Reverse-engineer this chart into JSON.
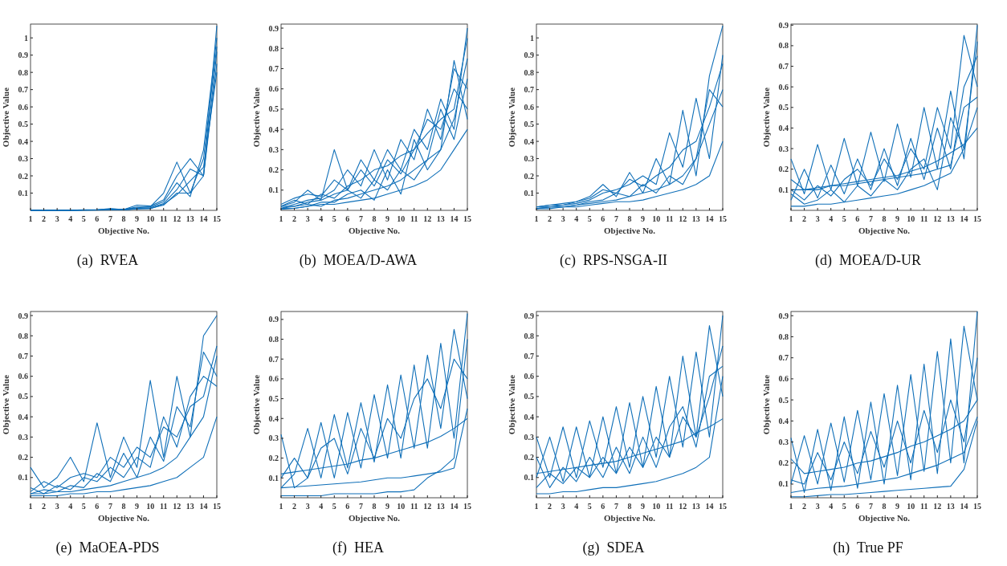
{
  "chart_data": [
    {
      "type": "line",
      "title": "(a)  RVEA",
      "xlabel": "Objective No.",
      "ylabel": "Objective Value",
      "x": [
        1,
        2,
        3,
        4,
        5,
        6,
        7,
        8,
        9,
        10,
        11,
        12,
        13,
        14,
        15
      ],
      "xlim": [
        1,
        15
      ],
      "xticks": [
        1,
        2,
        3,
        4,
        5,
        6,
        7,
        8,
        9,
        10,
        11,
        12,
        13,
        14,
        15
      ],
      "ylim": [
        0,
        1.08
      ],
      "yticks": [
        0.1,
        0.2,
        0.3,
        0.4,
        0.5,
        0.6,
        0.7,
        0.8,
        0.9,
        1
      ],
      "series": [
        {
          "color": "#0f6fb8",
          "values": [
            0,
            0,
            0,
            0,
            0.002,
            0.003,
            0.005,
            0.004,
            0.02,
            0.02,
            0.1,
            0.28,
            0.1,
            0.2,
            1.07
          ]
        },
        {
          "color": "#0f6fb8",
          "values": [
            0,
            0,
            0,
            0,
            0.002,
            0.003,
            0.01,
            0.005,
            0.03,
            0.025,
            0.06,
            0.2,
            0.3,
            0.2,
            0.92
          ]
        },
        {
          "color": "#0f6fb8",
          "values": [
            0,
            0,
            0,
            0.001,
            0.003,
            0.002,
            0.008,
            0.006,
            0.015,
            0.02,
            0.05,
            0.16,
            0.08,
            0.35,
            1.0
          ]
        },
        {
          "color": "#0f6fb8",
          "values": [
            0,
            0,
            0,
            0,
            0.001,
            0.002,
            0.004,
            0.003,
            0.01,
            0.015,
            0.04,
            0.12,
            0.24,
            0.2,
            0.85
          ]
        },
        {
          "color": "#0f6fb8",
          "values": [
            0,
            0,
            0,
            0,
            0.001,
            0.001,
            0.003,
            0.003,
            0.008,
            0.012,
            0.03,
            0.1,
            0.1,
            0.3,
            0.95
          ]
        },
        {
          "color": "#0f6fb8",
          "values": [
            0,
            0,
            0,
            0,
            0.001,
            0.002,
            0.003,
            0.004,
            0.01,
            0.01,
            0.035,
            0.09,
            0.17,
            0.25,
            0.8
          ]
        }
      ]
    },
    {
      "type": "line",
      "title": "(b)  MOEA/D-AWA",
      "xlabel": "Objective No.",
      "ylabel": "Objective Value",
      "x": [
        1,
        2,
        3,
        4,
        5,
        6,
        7,
        8,
        9,
        10,
        11,
        12,
        13,
        14,
        15
      ],
      "xlim": [
        1,
        15
      ],
      "xticks": [
        1,
        2,
        3,
        4,
        5,
        6,
        7,
        8,
        9,
        10,
        11,
        12,
        13,
        14,
        15
      ],
      "ylim": [
        0,
        0.92
      ],
      "yticks": [
        0.1,
        0.2,
        0.3,
        0.4,
        0.5,
        0.6,
        0.7,
        0.8,
        0.9
      ],
      "series": [
        {
          "color": "#0f6fb8",
          "values": [
            0.02,
            0.04,
            0.1,
            0.05,
            0.3,
            0.1,
            0.25,
            0.15,
            0.3,
            0.2,
            0.4,
            0.3,
            0.55,
            0.4,
            0.9
          ]
        },
        {
          "color": "#0f6fb8",
          "values": [
            0.01,
            0.03,
            0.05,
            0.06,
            0.1,
            0.2,
            0.12,
            0.3,
            0.15,
            0.35,
            0.25,
            0.5,
            0.35,
            0.7,
            0.6
          ]
        },
        {
          "color": "#0f6fb8",
          "values": [
            0.01,
            0.02,
            0.03,
            0.02,
            0.05,
            0.06,
            0.08,
            0.1,
            0.12,
            0.15,
            0.2,
            0.25,
            0.3,
            0.45,
            0.75
          ]
        },
        {
          "color": "#0f6fb8",
          "values": [
            0.005,
            0.01,
            0.02,
            0.03,
            0.03,
            0.04,
            0.05,
            0.06,
            0.08,
            0.1,
            0.12,
            0.15,
            0.2,
            0.3,
            0.4
          ]
        },
        {
          "color": "#0f6fb8",
          "values": [
            0.03,
            0.06,
            0.08,
            0.07,
            0.15,
            0.1,
            0.2,
            0.12,
            0.25,
            0.18,
            0.3,
            0.45,
            0.4,
            0.6,
            0.5
          ]
        },
        {
          "color": "#0f6fb8",
          "values": [
            0.02,
            0.02,
            0.04,
            0.05,
            0.08,
            0.1,
            0.06,
            0.15,
            0.1,
            0.2,
            0.15,
            0.25,
            0.5,
            0.35,
            0.65
          ]
        },
        {
          "color": "#0f6fb8",
          "values": [
            0.01,
            0.01,
            0.02,
            0.04,
            0.04,
            0.08,
            0.1,
            0.05,
            0.2,
            0.08,
            0.35,
            0.2,
            0.3,
            0.74,
            0.45
          ]
        },
        {
          "color": "#0f6fb8",
          "values": [
            0.02,
            0.05,
            0.03,
            0.08,
            0.06,
            0.12,
            0.15,
            0.2,
            0.22,
            0.27,
            0.3,
            0.38,
            0.45,
            0.5,
            0.85
          ]
        }
      ]
    },
    {
      "type": "line",
      "title": "(c)  RPS-NSGA-II",
      "xlabel": "Objective No.",
      "ylabel": "Objective Value",
      "x": [
        1,
        2,
        3,
        4,
        5,
        6,
        7,
        8,
        9,
        10,
        11,
        12,
        13,
        14,
        15
      ],
      "xlim": [
        1,
        15
      ],
      "xticks": [
        1,
        2,
        3,
        4,
        5,
        6,
        7,
        8,
        9,
        10,
        11,
        12,
        13,
        14,
        15
      ],
      "ylim": [
        0,
        1.08
      ],
      "yticks": [
        0.1,
        0.2,
        0.3,
        0.4,
        0.5,
        0.6,
        0.7,
        0.8,
        0.9,
        1
      ],
      "series": [
        {
          "color": "#0f6fb8",
          "values": [
            0.02,
            0.03,
            0.03,
            0.05,
            0.08,
            0.15,
            0.08,
            0.22,
            0.1,
            0.3,
            0.15,
            0.58,
            0.2,
            0.78,
            1.07
          ]
        },
        {
          "color": "#0f6fb8",
          "values": [
            0.02,
            0.02,
            0.03,
            0.04,
            0.06,
            0.1,
            0.12,
            0.15,
            0.2,
            0.15,
            0.45,
            0.25,
            0.65,
            0.3,
            0.9
          ]
        },
        {
          "color": "#0f6fb8",
          "values": [
            0.01,
            0.02,
            0.02,
            0.03,
            0.04,
            0.05,
            0.06,
            0.08,
            0.1,
            0.12,
            0.15,
            0.2,
            0.3,
            0.5,
            0.7
          ]
        },
        {
          "color": "#0f6fb8",
          "values": [
            0.01,
            0.01,
            0.02,
            0.02,
            0.03,
            0.04,
            0.05,
            0.05,
            0.06,
            0.08,
            0.1,
            0.12,
            0.15,
            0.2,
            0.4
          ]
        },
        {
          "color": "#0f6fb8",
          "values": [
            0.02,
            0.03,
            0.04,
            0.05,
            0.07,
            0.12,
            0.1,
            0.18,
            0.14,
            0.2,
            0.25,
            0.35,
            0.4,
            0.6,
            0.85
          ]
        },
        {
          "color": "#0f6fb8",
          "values": [
            0.01,
            0.02,
            0.02,
            0.03,
            0.05,
            0.06,
            0.1,
            0.08,
            0.15,
            0.1,
            0.2,
            0.15,
            0.3,
            0.7,
            0.6
          ]
        }
      ]
    },
    {
      "type": "line",
      "title": "(d)  MOEA/D-UR",
      "xlabel": "Objective No.",
      "ylabel": "Objective Value",
      "x": [
        1,
        2,
        3,
        4,
        5,
        6,
        7,
        8,
        9,
        10,
        11,
        12,
        13,
        14,
        15
      ],
      "xlim": [
        1,
        15
      ],
      "xticks": [
        1,
        2,
        3,
        4,
        5,
        6,
        7,
        8,
        9,
        10,
        11,
        12,
        13,
        14,
        15
      ],
      "ylim": [
        0,
        0.905
      ],
      "yticks": [
        0.1,
        0.2,
        0.3,
        0.4,
        0.5,
        0.6,
        0.7,
        0.8,
        0.9
      ],
      "series": [
        {
          "color": "#0f6fb8",
          "values": [
            0.25,
            0.08,
            0.32,
            0.1,
            0.35,
            0.12,
            0.38,
            0.14,
            0.42,
            0.16,
            0.5,
            0.2,
            0.58,
            0.25,
            0.9
          ]
        },
        {
          "color": "#0f6fb8",
          "values": [
            0.1,
            0.05,
            0.12,
            0.07,
            0.15,
            0.2,
            0.12,
            0.25,
            0.15,
            0.3,
            0.2,
            0.5,
            0.3,
            0.85,
            0.6
          ]
        },
        {
          "color": "#0f6fb8",
          "values": [
            0.1,
            0.1,
            0.11,
            0.12,
            0.13,
            0.14,
            0.15,
            0.16,
            0.17,
            0.19,
            0.21,
            0.24,
            0.28,
            0.32,
            0.4
          ]
        },
        {
          "color": "#0f6fb8",
          "values": [
            0.02,
            0.02,
            0.03,
            0.03,
            0.04,
            0.05,
            0.06,
            0.07,
            0.08,
            0.1,
            0.12,
            0.15,
            0.18,
            0.3,
            0.5
          ]
        },
        {
          "color": "#0f6fb8",
          "values": [
            0.05,
            0.2,
            0.06,
            0.22,
            0.08,
            0.25,
            0.1,
            0.3,
            0.12,
            0.35,
            0.15,
            0.4,
            0.2,
            0.6,
            0.75
          ]
        },
        {
          "color": "#0f6fb8",
          "values": [
            0.08,
            0.03,
            0.05,
            0.1,
            0.04,
            0.12,
            0.07,
            0.15,
            0.1,
            0.2,
            0.25,
            0.1,
            0.45,
            0.3,
            0.82
          ]
        },
        {
          "color": "#0f6fb8",
          "values": [
            0.15,
            0.1,
            0.1,
            0.12,
            0.12,
            0.13,
            0.14,
            0.15,
            0.16,
            0.17,
            0.18,
            0.2,
            0.22,
            0.5,
            0.55
          ]
        }
      ]
    },
    {
      "type": "line",
      "title": "(e)  MaOEA-PDS",
      "xlabel": "Objective No.",
      "ylabel": "Objective Value",
      "x": [
        1,
        2,
        3,
        4,
        5,
        6,
        7,
        8,
        9,
        10,
        11,
        12,
        13,
        14,
        15
      ],
      "xlim": [
        1,
        15
      ],
      "xticks": [
        1,
        2,
        3,
        4,
        5,
        6,
        7,
        8,
        9,
        10,
        11,
        12,
        13,
        14,
        15
      ],
      "ylim": [
        0,
        0.92
      ],
      "yticks": [
        0.1,
        0.2,
        0.3,
        0.4,
        0.5,
        0.6,
        0.7,
        0.8,
        0.9
      ],
      "series": [
        {
          "color": "#0f6fb8",
          "values": [
            0.15,
            0.05,
            0.1,
            0.2,
            0.08,
            0.37,
            0.1,
            0.3,
            0.15,
            0.58,
            0.2,
            0.6,
            0.3,
            0.8,
            0.9
          ]
        },
        {
          "color": "#0f6fb8",
          "values": [
            0.05,
            0.02,
            0.06,
            0.04,
            0.1,
            0.08,
            0.15,
            0.1,
            0.2,
            0.15,
            0.4,
            0.25,
            0.5,
            0.6,
            0.55
          ]
        },
        {
          "color": "#0f6fb8",
          "values": [
            0.02,
            0.02,
            0.03,
            0.03,
            0.04,
            0.05,
            0.06,
            0.08,
            0.1,
            0.12,
            0.15,
            0.2,
            0.3,
            0.4,
            0.7
          ]
        },
        {
          "color": "#0f6fb8",
          "values": [
            0.01,
            0.01,
            0.01,
            0.02,
            0.02,
            0.03,
            0.03,
            0.04,
            0.05,
            0.06,
            0.08,
            0.1,
            0.15,
            0.2,
            0.4
          ]
        },
        {
          "color": "#0f6fb8",
          "values": [
            0.03,
            0.08,
            0.05,
            0.1,
            0.12,
            0.1,
            0.2,
            0.15,
            0.25,
            0.2,
            0.35,
            0.3,
            0.45,
            0.5,
            0.75
          ]
        },
        {
          "color": "#0f6fb8",
          "values": [
            0.02,
            0.04,
            0.03,
            0.06,
            0.05,
            0.12,
            0.08,
            0.22,
            0.1,
            0.3,
            0.18,
            0.45,
            0.35,
            0.72,
            0.6
          ]
        }
      ]
    },
    {
      "type": "line",
      "title": "(f)  HEA",
      "xlabel": "Objective No.",
      "ylabel": "Objective Value",
      "x": [
        1,
        2,
        3,
        4,
        5,
        6,
        7,
        8,
        9,
        10,
        11,
        12,
        13,
        14,
        15
      ],
      "xlim": [
        1,
        15
      ],
      "xticks": [
        1,
        2,
        3,
        4,
        5,
        6,
        7,
        8,
        9,
        10,
        11,
        12,
        13,
        14,
        15
      ],
      "ylim": [
        0,
        0.94
      ],
      "yticks": [
        0.1,
        0.2,
        0.3,
        0.4,
        0.5,
        0.6,
        0.7,
        0.8,
        0.9
      ],
      "series": [
        {
          "color": "#0f6fb8",
          "values": [
            0.05,
            0.12,
            0.35,
            0.1,
            0.42,
            0.15,
            0.48,
            0.18,
            0.57,
            0.2,
            0.67,
            0.25,
            0.78,
            0.3,
            0.93
          ]
        },
        {
          "color": "#0f6fb8",
          "values": [
            0.32,
            0.05,
            0.1,
            0.38,
            0.1,
            0.43,
            0.15,
            0.52,
            0.2,
            0.62,
            0.25,
            0.72,
            0.35,
            0.85,
            0.5
          ]
        },
        {
          "color": "#0f6fb8",
          "values": [
            0.12,
            0.13,
            0.14,
            0.15,
            0.16,
            0.17,
            0.19,
            0.2,
            0.22,
            0.24,
            0.26,
            0.28,
            0.31,
            0.35,
            0.4
          ]
        },
        {
          "color": "#0f6fb8",
          "values": [
            0.05,
            0.055,
            0.06,
            0.065,
            0.07,
            0.075,
            0.08,
            0.09,
            0.1,
            0.1,
            0.11,
            0.12,
            0.13,
            0.15,
            0.45
          ]
        },
        {
          "color": "#0f6fb8",
          "values": [
            0.01,
            0.01,
            0.01,
            0.01,
            0.02,
            0.02,
            0.02,
            0.02,
            0.03,
            0.03,
            0.04,
            0.1,
            0.14,
            0.2,
            0.8
          ]
        },
        {
          "color": "#0f6fb8",
          "values": [
            0.1,
            0.2,
            0.1,
            0.25,
            0.3,
            0.12,
            0.35,
            0.2,
            0.4,
            0.3,
            0.5,
            0.6,
            0.45,
            0.7,
            0.6
          ]
        }
      ]
    },
    {
      "type": "line",
      "title": "(g)  SDEA",
      "xlabel": "Objective No.",
      "ylabel": "Objective Value",
      "x": [
        1,
        2,
        3,
        4,
        5,
        6,
        7,
        8,
        9,
        10,
        11,
        12,
        13,
        14,
        15
      ],
      "xlim": [
        1,
        15
      ],
      "xticks": [
        1,
        2,
        3,
        4,
        5,
        6,
        7,
        8,
        9,
        10,
        11,
        12,
        13,
        14,
        15
      ],
      "ylim": [
        0,
        0.92
      ],
      "yticks": [
        0.1,
        0.2,
        0.3,
        0.4,
        0.5,
        0.6,
        0.7,
        0.8,
        0.9
      ],
      "series": [
        {
          "color": "#0f6fb8",
          "values": [
            0.3,
            0.1,
            0.35,
            0.1,
            0.38,
            0.15,
            0.45,
            0.15,
            0.5,
            0.2,
            0.6,
            0.25,
            0.72,
            0.3,
            0.9
          ]
        },
        {
          "color": "#0f6fb8",
          "values": [
            0.1,
            0.3,
            0.08,
            0.35,
            0.1,
            0.4,
            0.12,
            0.47,
            0.15,
            0.55,
            0.2,
            0.7,
            0.3,
            0.85,
            0.5
          ]
        },
        {
          "color": "#0f6fb8",
          "values": [
            0.12,
            0.13,
            0.14,
            0.15,
            0.16,
            0.17,
            0.18,
            0.2,
            0.22,
            0.24,
            0.26,
            0.28,
            0.32,
            0.35,
            0.39
          ]
        },
        {
          "color": "#0f6fb8",
          "values": [
            0.02,
            0.02,
            0.03,
            0.03,
            0.04,
            0.05,
            0.05,
            0.06,
            0.07,
            0.08,
            0.1,
            0.12,
            0.15,
            0.2,
            0.6
          ]
        },
        {
          "color": "#0f6fb8",
          "values": [
            0.05,
            0.12,
            0.07,
            0.15,
            0.1,
            0.2,
            0.12,
            0.25,
            0.15,
            0.3,
            0.2,
            0.4,
            0.3,
            0.5,
            0.75
          ]
        },
        {
          "color": "#0f6fb8",
          "values": [
            0.2,
            0.05,
            0.15,
            0.08,
            0.2,
            0.1,
            0.25,
            0.12,
            0.3,
            0.15,
            0.35,
            0.45,
            0.25,
            0.6,
            0.65
          ]
        }
      ]
    },
    {
      "type": "line",
      "title": "(h)  True PF",
      "xlabel": "Objective No.",
      "ylabel": "Objective Value",
      "x": [
        1,
        2,
        3,
        4,
        5,
        6,
        7,
        8,
        9,
        10,
        11,
        12,
        13,
        14,
        15
      ],
      "xlim": [
        1,
        15
      ],
      "xticks": [
        1,
        2,
        3,
        4,
        5,
        6,
        7,
        8,
        9,
        10,
        11,
        12,
        13,
        14,
        15
      ],
      "ylim": [
        0.035,
        0.92
      ],
      "yticks": [
        0.1,
        0.2,
        0.3,
        0.4,
        0.5,
        0.6,
        0.7,
        0.8,
        0.9
      ],
      "series": [
        {
          "color": "#0f6fb8",
          "values": [
            0.32,
            0.06,
            0.36,
            0.07,
            0.42,
            0.08,
            0.49,
            0.1,
            0.57,
            0.12,
            0.67,
            0.15,
            0.79,
            0.2,
            0.92
          ]
        },
        {
          "color": "#0f6fb8",
          "values": [
            0.1,
            0.33,
            0.1,
            0.39,
            0.11,
            0.45,
            0.12,
            0.53,
            0.14,
            0.62,
            0.16,
            0.73,
            0.2,
            0.85,
            0.5
          ]
        },
        {
          "color": "#0f6fb8",
          "values": [
            0.22,
            0.15,
            0.16,
            0.17,
            0.18,
            0.2,
            0.21,
            0.23,
            0.25,
            0.28,
            0.3,
            0.33,
            0.36,
            0.4,
            0.5
          ]
        },
        {
          "color": "#0f6fb8",
          "values": [
            0.06,
            0.07,
            0.08,
            0.085,
            0.09,
            0.1,
            0.11,
            0.12,
            0.13,
            0.15,
            0.17,
            0.19,
            0.22,
            0.25,
            0.42
          ]
        },
        {
          "color": "#0f6fb8",
          "values": [
            0.04,
            0.04,
            0.045,
            0.05,
            0.05,
            0.055,
            0.06,
            0.065,
            0.07,
            0.075,
            0.08,
            0.085,
            0.09,
            0.17,
            0.4
          ]
        },
        {
          "color": "#0f6fb8",
          "values": [
            0.12,
            0.1,
            0.25,
            0.12,
            0.3,
            0.15,
            0.35,
            0.18,
            0.4,
            0.2,
            0.45,
            0.25,
            0.5,
            0.3,
            0.7
          ]
        }
      ]
    }
  ]
}
